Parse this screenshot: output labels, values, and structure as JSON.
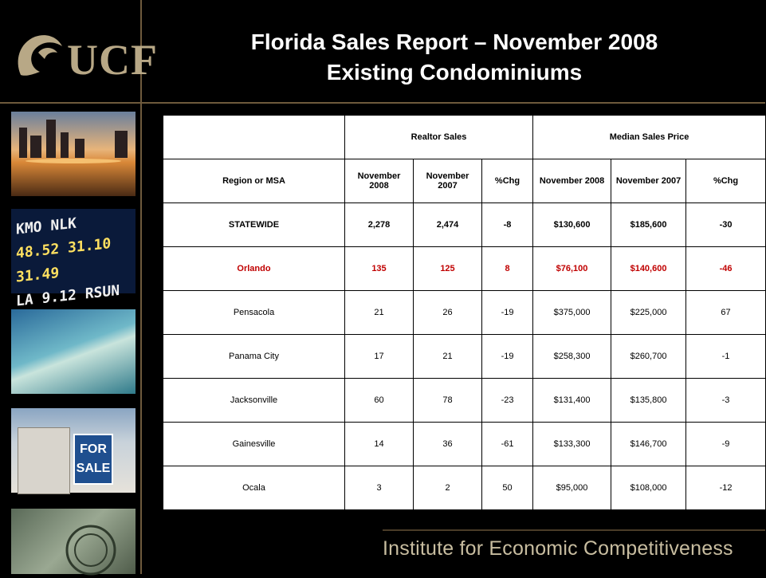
{
  "logo": {
    "text": "UCF"
  },
  "title": {
    "line1": "Florida Sales Report – November 2008",
    "line2": "Existing Condominiums"
  },
  "table": {
    "group_headers": [
      "Realtor Sales",
      "Median Sales Price"
    ],
    "region_header": "Region or MSA",
    "sub_headers": [
      "November 2008",
      "November 2007",
      "%Chg",
      "November 2008",
      "November 2007",
      "%Chg"
    ],
    "rows": [
      {
        "region": "STATEWIDE",
        "values": [
          "2,278",
          "2,474",
          "-8",
          "$130,600",
          "$185,600",
          "-30"
        ]
      },
      {
        "region": "Orlando",
        "values": [
          "135",
          "125",
          "8",
          "$76,100",
          "$140,600",
          "-46"
        ]
      },
      {
        "region": "Pensacola",
        "values": [
          "21",
          "26",
          "-19",
          "$375,000",
          "$225,000",
          "67"
        ]
      },
      {
        "region": "Panama City",
        "values": [
          "17",
          "21",
          "-19",
          "$258,300",
          "$260,700",
          "-1"
        ]
      },
      {
        "region": "Jacksonville",
        "values": [
          "60",
          "78",
          "-23",
          "$131,400",
          "$135,800",
          "-3"
        ]
      },
      {
        "region": "Gainesville",
        "values": [
          "14",
          "36",
          "-61",
          "$133,300",
          "$146,700",
          "-9"
        ]
      },
      {
        "region": "Ocala",
        "values": [
          "3",
          "2",
          "50",
          "$95,000",
          "$108,000",
          "-12"
        ]
      }
    ]
  },
  "ticker": {
    "line1": "KMO NLK",
    "line2": "48.52 31.10 31.49",
    "line3": "LA 9.12 RSUN"
  },
  "sign": {
    "line1": "FOR",
    "line2": "SALE"
  },
  "footer": {
    "text": "Institute for Economic Competitiveness"
  }
}
